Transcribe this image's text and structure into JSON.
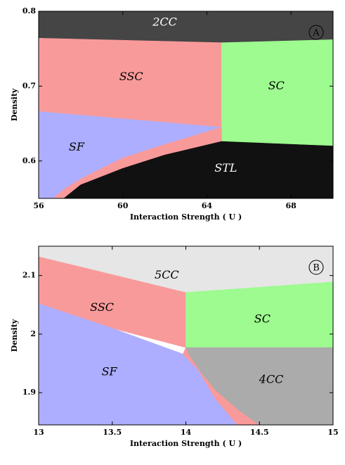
{
  "chart_data": [
    {
      "type": "area",
      "panel_letter": "A",
      "xlabel": "Interaction Strength ( U )",
      "ylabel": "Density",
      "xlim": [
        56,
        70
      ],
      "ylim": [
        0.55,
        0.8
      ],
      "xticks": [
        "56",
        "60",
        "64",
        "68"
      ],
      "xtick_values": [
        56,
        60,
        64,
        68
      ],
      "yticks": [
        "0.6",
        "0.7",
        "0.8"
      ],
      "ytick_values": [
        0.6,
        0.7,
        0.8
      ],
      "regions": [
        {
          "label": "2CC",
          "color": "#454545",
          "label_color": "#ffffff",
          "label_at": [
            62.0,
            0.785
          ],
          "points": [
            [
              56,
              0.8
            ],
            [
              70,
              0.8
            ],
            [
              70,
              0.762
            ],
            [
              64.7,
              0.758
            ],
            [
              56,
              0.764
            ]
          ]
        },
        {
          "label": "SSC",
          "color": "#f99a9a",
          "label_color": "#000000",
          "label_at": [
            60.4,
            0.712
          ],
          "points": [
            [
              56,
              0.764
            ],
            [
              64.7,
              0.758
            ],
            [
              64.7,
              0.645
            ],
            [
              56,
              0.666
            ]
          ]
        },
        {
          "label": "SC",
          "color": "#9dfb8f",
          "label_color": "#000000",
          "label_at": [
            67.3,
            0.7
          ],
          "points": [
            [
              64.7,
              0.758
            ],
            [
              70,
              0.762
            ],
            [
              70,
              0.62
            ],
            [
              64.7,
              0.626
            ]
          ]
        },
        {
          "label": "SF",
          "color": "#adaeff",
          "label_color": "#000000",
          "label_at": [
            57.8,
            0.618
          ],
          "points": [
            [
              56,
              0.666
            ],
            [
              64.7,
              0.645
            ],
            [
              62,
              0.622
            ],
            [
              60,
              0.604
            ],
            [
              58,
              0.576
            ],
            [
              57.2,
              0.562
            ],
            [
              56.7,
              0.55
            ],
            [
              56,
              0.55
            ]
          ]
        },
        {
          "label": "",
          "color": "#f99a9a",
          "label_color": "#000000",
          "label_at": null,
          "points": [
            [
              64.7,
              0.645
            ],
            [
              64.7,
              0.626
            ],
            [
              62,
              0.608
            ],
            [
              60,
              0.59
            ],
            [
              58,
              0.568
            ],
            [
              57.2,
              0.55
            ],
            [
              56.7,
              0.55
            ],
            [
              57.2,
              0.562
            ],
            [
              58,
              0.576
            ],
            [
              60,
              0.604
            ],
            [
              62,
              0.622
            ]
          ]
        },
        {
          "label": "STL",
          "color": "#111111",
          "label_color": "#ffffff",
          "label_at": [
            64.9,
            0.59
          ],
          "points": [
            [
              57.2,
              0.55
            ],
            [
              58,
              0.568
            ],
            [
              60,
              0.59
            ],
            [
              62,
              0.608
            ],
            [
              64.7,
              0.626
            ],
            [
              70,
              0.62
            ],
            [
              70,
              0.55
            ]
          ]
        }
      ]
    },
    {
      "type": "area",
      "panel_letter": "B",
      "xlabel": "Interaction Strength ( U )",
      "ylabel": "Density",
      "xlim": [
        13,
        15
      ],
      "ylim": [
        1.845,
        2.15
      ],
      "xticks": [
        "13",
        "13.5",
        "14",
        "14.5",
        "15"
      ],
      "xtick_values": [
        13,
        13.5,
        14,
        14.5,
        15
      ],
      "yticks": [
        "1.9",
        "2",
        "2.1"
      ],
      "ytick_values": [
        1.9,
        2.0,
        2.1
      ],
      "regions": [
        {
          "label": "5CC",
          "color": "#e6e6e6",
          "label_color": "#000000",
          "label_at": [
            13.87,
            2.1
          ],
          "points": [
            [
              13,
              2.15
            ],
            [
              15,
              2.15
            ],
            [
              15,
              2.089
            ],
            [
              14,
              2.071
            ],
            [
              13,
              2.132
            ]
          ]
        },
        {
          "label": "SSC",
          "color": "#f99a9a",
          "label_color": "#000000",
          "label_at": [
            13.43,
            2.045
          ],
          "points": [
            [
              13,
              2.132
            ],
            [
              14,
              2.071
            ],
            [
              14,
              1.977
            ],
            [
              13.5,
              2.01
            ],
            [
              13,
              2.052
            ]
          ]
        },
        {
          "label": "SC",
          "color": "#9dfb8f",
          "label_color": "#000000",
          "label_at": [
            14.52,
            2.025
          ],
          "points": [
            [
              14,
              2.071
            ],
            [
              15,
              2.089
            ],
            [
              15,
              1.977
            ],
            [
              14,
              1.977
            ]
          ]
        },
        {
          "label": "SF",
          "color": "#adaeff",
          "label_color": "#000000",
          "label_at": [
            13.48,
            1.935
          ],
          "points": [
            [
              13,
              2.052
            ],
            [
              13.5,
              2.01
            ],
            [
              13.98,
              1.966
            ],
            [
              14.08,
              1.94
            ],
            [
              14.2,
              1.89
            ],
            [
              14.35,
              1.845
            ],
            [
              13,
              1.845
            ]
          ]
        },
        {
          "label": "",
          "color": "#f99a9a",
          "label_color": "#000000",
          "label_at": null,
          "points": [
            [
              14,
              1.977
            ],
            [
              14.03,
              1.962
            ],
            [
              14.1,
              1.936
            ],
            [
              14.2,
              1.905
            ],
            [
              14.35,
              1.872
            ],
            [
              14.5,
              1.845
            ],
            [
              14.35,
              1.845
            ],
            [
              14.2,
              1.89
            ],
            [
              14.08,
              1.94
            ],
            [
              13.98,
              1.966
            ]
          ]
        },
        {
          "label": "4CC",
          "color": "#ababab",
          "label_color": "#000000",
          "label_at": [
            14.58,
            1.922
          ],
          "points": [
            [
              14,
              1.977
            ],
            [
              15,
              1.977
            ],
            [
              15,
              1.845
            ],
            [
              14.5,
              1.845
            ],
            [
              14.35,
              1.872
            ],
            [
              14.2,
              1.905
            ],
            [
              14.1,
              1.936
            ],
            [
              14.03,
              1.962
            ]
          ]
        }
      ]
    }
  ]
}
